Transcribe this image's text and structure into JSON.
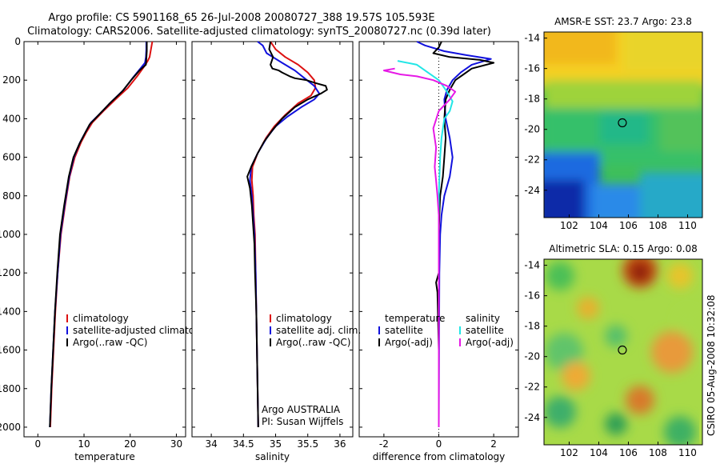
{
  "header": {
    "line1": "Argo profile: CS 5901168_65 26-Jul-2008 20080727_388 19.57S 105.593E",
    "line2": "Climatology: CARS2006. Satellite-adjusted climatology: synTS_20080727.nc (0.39d later)"
  },
  "side_stamp": "CSIRO 05-Aug-2008 10:32:08",
  "colors": {
    "red": "#dd1111",
    "blue": "#1111dd",
    "black": "#000000",
    "cyan": "#22e6e6",
    "magenta": "#e619e6"
  },
  "chart_data": [
    {
      "type": "line",
      "name": "temperature",
      "xlabel": "temperature",
      "xlim": [
        -3,
        32
      ],
      "xticks": [
        0,
        10,
        20,
        30
      ],
      "ylim": [
        2050,
        0
      ],
      "yticks": [
        0,
        200,
        400,
        600,
        800,
        1000,
        1200,
        1400,
        1600,
        1800,
        2000
      ],
      "legend": [
        "climatology",
        "satellite-adjusted climatology",
        "Argo(..raw -QC)"
      ],
      "series": [
        {
          "name": "climatology",
          "color": "red",
          "points": [
            [
              24.8,
              0
            ],
            [
              24.5,
              40
            ],
            [
              24.2,
              80
            ],
            [
              23.8,
              100
            ],
            [
              23.0,
              130
            ],
            [
              21.5,
              180
            ],
            [
              19.5,
              240
            ],
            [
              16.8,
              300
            ],
            [
              14.2,
              360
            ],
            [
              11.8,
              420
            ],
            [
              10.5,
              470
            ],
            [
              9.4,
              520
            ],
            [
              8.0,
              600
            ],
            [
              6.9,
              700
            ],
            [
              5.9,
              850
            ],
            [
              5.0,
              1000
            ],
            [
              4.3,
              1200
            ],
            [
              3.8,
              1400
            ],
            [
              3.4,
              1600
            ],
            [
              3.0,
              1800
            ],
            [
              2.7,
              2000
            ]
          ]
        },
        {
          "name": "satellite-adjusted climatology",
          "color": "blue",
          "points": [
            [
              23.5,
              0
            ],
            [
              23.5,
              40
            ],
            [
              23.4,
              80
            ],
            [
              23.2,
              110
            ],
            [
              22.2,
              140
            ],
            [
              20.5,
              190
            ],
            [
              18.6,
              250
            ],
            [
              16.0,
              310
            ],
            [
              13.6,
              370
            ],
            [
              11.5,
              420
            ],
            [
              10.3,
              470
            ],
            [
              9.2,
              520
            ],
            [
              7.8,
              600
            ],
            [
              6.8,
              700
            ],
            [
              5.8,
              850
            ],
            [
              4.9,
              1000
            ],
            [
              4.3,
              1200
            ],
            [
              3.7,
              1400
            ],
            [
              3.3,
              1600
            ],
            [
              2.9,
              1800
            ],
            [
              2.6,
              2000
            ]
          ]
        },
        {
          "name": "Argo(..raw -QC)",
          "color": "black",
          "points": [
            [
              23.6,
              0
            ],
            [
              23.6,
              50
            ],
            [
              23.5,
              90
            ],
            [
              23.4,
              120
            ],
            [
              22.0,
              150
            ],
            [
              20.2,
              200
            ],
            [
              18.2,
              260
            ],
            [
              15.6,
              320
            ],
            [
              13.2,
              380
            ],
            [
              11.2,
              430
            ],
            [
              10.1,
              480
            ],
            [
              9.0,
              530
            ],
            [
              7.7,
              600
            ],
            [
              6.7,
              700
            ],
            [
              5.7,
              850
            ],
            [
              4.8,
              1000
            ],
            [
              4.2,
              1200
            ],
            [
              3.7,
              1400
            ],
            [
              3.3,
              1600
            ],
            [
              2.9,
              1800
            ],
            [
              2.6,
              2000
            ]
          ]
        }
      ]
    },
    {
      "type": "line",
      "name": "salinity",
      "xlabel": "salinity",
      "xlim": [
        33.7,
        36.2
      ],
      "xticks": [
        34,
        34.5,
        35,
        35.5,
        36
      ],
      "ylim": [
        2050,
        0
      ],
      "legend": [
        "climatology",
        "satellite adj. clim.",
        "Argo(..raw -QC)"
      ],
      "annotation": [
        "Argo AUSTRALIA",
        "PI: Susan Wijffels"
      ],
      "series": [
        {
          "name": "climatology",
          "color": "red",
          "points": [
            [
              34.92,
              0
            ],
            [
              35.0,
              40
            ],
            [
              35.15,
              80
            ],
            [
              35.35,
              120
            ],
            [
              35.5,
              160
            ],
            [
              35.6,
              200
            ],
            [
              35.62,
              240
            ],
            [
              35.55,
              280
            ],
            [
              35.35,
              320
            ],
            [
              35.15,
              380
            ],
            [
              34.98,
              440
            ],
            [
              34.85,
              500
            ],
            [
              34.72,
              580
            ],
            [
              34.64,
              650
            ],
            [
              34.63,
              720
            ],
            [
              34.65,
              800
            ],
            [
              34.66,
              900
            ],
            [
              34.68,
              1000
            ],
            [
              34.69,
              1200
            ],
            [
              34.7,
              1400
            ],
            [
              34.71,
              1600
            ],
            [
              34.72,
              1800
            ],
            [
              34.73,
              2000
            ]
          ]
        },
        {
          "name": "satellite adj. clim.",
          "color": "blue",
          "points": [
            [
              34.72,
              0
            ],
            [
              34.8,
              20
            ],
            [
              34.86,
              60
            ],
            [
              35.1,
              110
            ],
            [
              35.3,
              150
            ],
            [
              35.45,
              190
            ],
            [
              35.6,
              230
            ],
            [
              35.68,
              270
            ],
            [
              35.6,
              300
            ],
            [
              35.4,
              340
            ],
            [
              35.18,
              390
            ],
            [
              35.0,
              440
            ],
            [
              34.86,
              500
            ],
            [
              34.72,
              580
            ],
            [
              34.62,
              650
            ],
            [
              34.6,
              720
            ],
            [
              34.63,
              800
            ],
            [
              34.65,
              900
            ],
            [
              34.67,
              1000
            ],
            [
              34.69,
              1200
            ],
            [
              34.7,
              1400
            ],
            [
              34.71,
              1600
            ],
            [
              34.72,
              1800
            ],
            [
              34.73,
              2000
            ]
          ]
        },
        {
          "name": "Argo(..raw -QC)",
          "color": "black",
          "points": [
            [
              34.92,
              0
            ],
            [
              34.9,
              40
            ],
            [
              34.96,
              80
            ],
            [
              34.92,
              120
            ],
            [
              34.95,
              140
            ],
            [
              35.05,
              150
            ],
            [
              35.1,
              160
            ],
            [
              35.22,
              180
            ],
            [
              35.3,
              190
            ],
            [
              35.48,
              200
            ],
            [
              35.62,
              215
            ],
            [
              35.78,
              230
            ],
            [
              35.8,
              250
            ],
            [
              35.7,
              270
            ],
            [
              35.5,
              300
            ],
            [
              35.3,
              340
            ],
            [
              35.1,
              400
            ],
            [
              34.95,
              460
            ],
            [
              34.82,
              520
            ],
            [
              34.72,
              580
            ],
            [
              34.62,
              650
            ],
            [
              34.56,
              700
            ],
            [
              34.6,
              760
            ],
            [
              34.63,
              850
            ],
            [
              34.65,
              950
            ],
            [
              34.67,
              1050
            ],
            [
              34.68,
              1200
            ],
            [
              34.7,
              1400
            ],
            [
              34.71,
              1600
            ],
            [
              34.72,
              1800
            ],
            [
              34.73,
              2000
            ]
          ]
        }
      ]
    },
    {
      "type": "line",
      "name": "difference",
      "xlabel": "difference from climatology",
      "xlim": [
        -2.9,
        2.9
      ],
      "xticks": [
        -2,
        0,
        2
      ],
      "ylim": [
        2050,
        0
      ],
      "legend_temperature": {
        "title": "temperature",
        "items": [
          "satellite",
          "Argo(-adj)"
        ]
      },
      "legend_salinity": {
        "title": "salinity",
        "items": [
          "satellite",
          "Argo(-adj)"
        ]
      },
      "series": [
        {
          "name": "temperature satellite",
          "color": "blue",
          "points": [
            [
              -0.8,
              0
            ],
            [
              -0.5,
              20
            ],
            [
              0.2,
              50
            ],
            [
              1.0,
              70
            ],
            [
              1.9,
              90
            ],
            [
              1.2,
              120
            ],
            [
              0.8,
              160
            ],
            [
              0.5,
              200
            ],
            [
              0.3,
              250
            ],
            [
              0.2,
              300
            ],
            [
              0.25,
              400
            ],
            [
              0.4,
              500
            ],
            [
              0.5,
              600
            ],
            [
              0.4,
              700
            ],
            [
              0.2,
              800
            ],
            [
              0.1,
              900
            ],
            [
              0.05,
              1000
            ],
            [
              0.02,
              1200
            ],
            [
              0.01,
              1600
            ],
            [
              0.0,
              2000
            ]
          ]
        },
        {
          "name": "temperature Argo(-adj)",
          "color": "black",
          "points": [
            [
              0.1,
              0
            ],
            [
              0.0,
              30
            ],
            [
              -0.2,
              60
            ],
            [
              0.4,
              80
            ],
            [
              1.5,
              95
            ],
            [
              2.0,
              110
            ],
            [
              1.2,
              140
            ],
            [
              0.9,
              170
            ],
            [
              0.6,
              200
            ],
            [
              0.4,
              250
            ],
            [
              0.25,
              300
            ],
            [
              0.2,
              400
            ],
            [
              0.25,
              500
            ],
            [
              0.2,
              600
            ],
            [
              0.15,
              700
            ],
            [
              0.05,
              800
            ],
            [
              0.02,
              900
            ],
            [
              0.0,
              1000
            ],
            [
              0.0,
              1200
            ],
            [
              -0.1,
              1250
            ],
            [
              -0.05,
              1300
            ],
            [
              0.0,
              1600
            ],
            [
              0.0,
              2000
            ]
          ]
        },
        {
          "name": "salinity satellite",
          "color": "cyan",
          "points": [
            [
              -1.5,
              100
            ],
            [
              -0.8,
              120
            ],
            [
              -0.4,
              160
            ],
            [
              0.0,
              200
            ],
            [
              0.3,
              260
            ],
            [
              0.5,
              310
            ],
            [
              0.4,
              360
            ],
            [
              0.2,
              400
            ],
            [
              0.1,
              500
            ],
            [
              0.05,
              600
            ],
            [
              0.0,
              800
            ],
            [
              0.0,
              1000
            ],
            [
              0.0,
              2000
            ]
          ]
        },
        {
          "name": "salinity Argo(-adj)",
          "color": "magenta",
          "points": [
            [
              -1.6,
              140
            ],
            [
              -2.0,
              150
            ],
            [
              -1.4,
              170
            ],
            [
              -0.8,
              180
            ],
            [
              -0.2,
              200
            ],
            [
              0.3,
              230
            ],
            [
              0.6,
              260
            ],
            [
              0.4,
              300
            ],
            [
              0.0,
              360
            ],
            [
              -0.2,
              450
            ],
            [
              -0.1,
              550
            ],
            [
              -0.15,
              650
            ],
            [
              -0.1,
              720
            ],
            [
              -0.05,
              800
            ],
            [
              0.0,
              900
            ],
            [
              0.0,
              1000
            ],
            [
              0.0,
              2000
            ]
          ]
        }
      ]
    },
    {
      "type": "heatmap",
      "name": "amsre_sst",
      "title": "AMSR-E SST: 23.7 Argo: 23.8",
      "xticks": [
        "102",
        "104",
        "106",
        "108",
        "110"
      ],
      "yticks": [
        "-14",
        "-16",
        "-18",
        "-20",
        "-22",
        "-24"
      ],
      "marker": [
        105.593,
        -19.57
      ]
    },
    {
      "type": "heatmap",
      "name": "altimetric_sla",
      "title": "Altimetric SLA: 0.15 Argo: 0.08",
      "xticks": [
        "102",
        "104",
        "106",
        "108",
        "110"
      ],
      "yticks": [
        "-14",
        "-16",
        "-18",
        "-20",
        "-22",
        "-24"
      ],
      "marker": [
        105.593,
        -19.57
      ]
    }
  ]
}
